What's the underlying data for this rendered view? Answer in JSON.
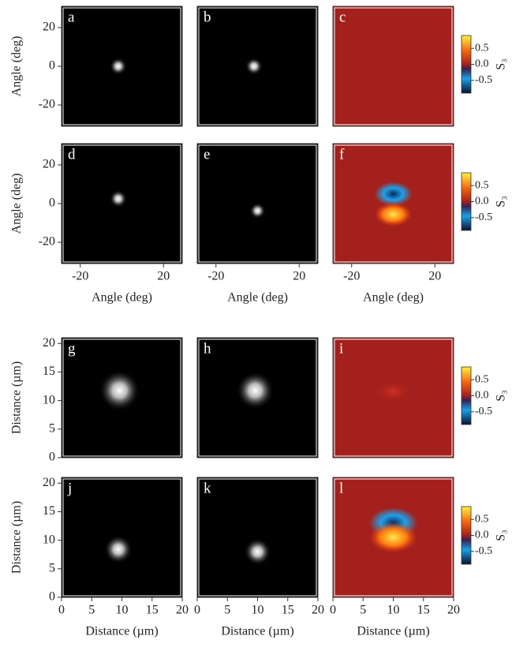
{
  "chart_data": [
    {
      "type": "image",
      "label": "a",
      "xlim": [
        -29,
        29
      ],
      "ylim": [
        -31,
        31
      ],
      "yticks": [
        -20,
        0,
        20
      ],
      "ylabel": "Angle (deg)",
      "cmap": "gray"
    },
    {
      "type": "image",
      "label": "b",
      "xlim": [
        -29,
        29
      ],
      "ylim": [
        -31,
        31
      ],
      "cmap": "gray"
    },
    {
      "type": "image",
      "label": "c",
      "xlim": [
        -29,
        29
      ],
      "ylim": [
        -31,
        31
      ],
      "cmap": "s3",
      "clim": [
        -0.9,
        0.9
      ],
      "cticks": [
        0.5,
        {
          "value": 0,
          "label": "0.0"
        },
        -0.5
      ],
      "clabel": "S₃"
    },
    {
      "type": "image",
      "label": "d",
      "xlim": [
        -29,
        29
      ],
      "ylim": [
        -31,
        31
      ],
      "xticks": [
        -20,
        20
      ],
      "yticks": [
        -20,
        0,
        20
      ],
      "xlabel": "Angle (deg)",
      "ylabel": "Angle (deg)",
      "cmap": "gray"
    },
    {
      "type": "image",
      "label": "e",
      "xlim": [
        -29,
        29
      ],
      "ylim": [
        -31,
        31
      ],
      "xticks": [
        -20,
        20
      ],
      "xlabel": "Angle (deg)",
      "cmap": "gray"
    },
    {
      "type": "image",
      "label": "f",
      "xlim": [
        -29,
        29
      ],
      "ylim": [
        -31,
        31
      ],
      "xticks": [
        -20,
        20
      ],
      "xlabel": "Angle (deg)",
      "cmap": "s3",
      "clim": [
        -0.9,
        0.9
      ],
      "cticks": [
        0.5,
        {
          "value": 0,
          "label": "0.0"
        },
        -0.5
      ],
      "clabel": "S₃"
    },
    {
      "type": "image",
      "label": "g",
      "xlim": [
        0,
        20
      ],
      "ylim": [
        0,
        21
      ],
      "yticks": [
        0,
        5,
        10,
        15,
        20
      ],
      "ylabel": "Distance (µm)",
      "cmap": "gray"
    },
    {
      "type": "image",
      "label": "h",
      "xlim": [
        0,
        20
      ],
      "ylim": [
        0,
        21
      ],
      "cmap": "gray"
    },
    {
      "type": "image",
      "label": "i",
      "xlim": [
        0,
        20
      ],
      "ylim": [
        0,
        21
      ],
      "cmap": "s3",
      "clim": [
        -0.9,
        0.9
      ],
      "cticks": [
        0.5,
        {
          "value": 0,
          "label": "0.0"
        },
        -0.5
      ],
      "clabel": "S₃"
    },
    {
      "type": "image",
      "label": "j",
      "xlim": [
        0,
        20
      ],
      "ylim": [
        0,
        21
      ],
      "xticks": [
        0,
        5,
        10,
        15,
        20
      ],
      "yticks": [
        0,
        5,
        10,
        15,
        20
      ],
      "xlabel": "Distance (µm)",
      "ylabel": "Distance (µm)",
      "cmap": "gray"
    },
    {
      "type": "image",
      "label": "k",
      "xlim": [
        0,
        20
      ],
      "ylim": [
        0,
        21
      ],
      "xticks": [
        0,
        5,
        10,
        15,
        20
      ],
      "xlabel": "Distance (µm)",
      "cmap": "gray"
    },
    {
      "type": "image",
      "label": "l",
      "xlim": [
        0,
        20
      ],
      "ylim": [
        0,
        21
      ],
      "xticks": [
        0,
        5,
        10,
        15,
        20
      ],
      "xlabel": "Distance (µm)",
      "cmap": "s3",
      "clim": [
        -0.9,
        0.9
      ],
      "cticks": [
        0.5,
        {
          "value": 0,
          "label": "0.0"
        },
        -0.5
      ],
      "clabel": "S₃"
    }
  ]
}
